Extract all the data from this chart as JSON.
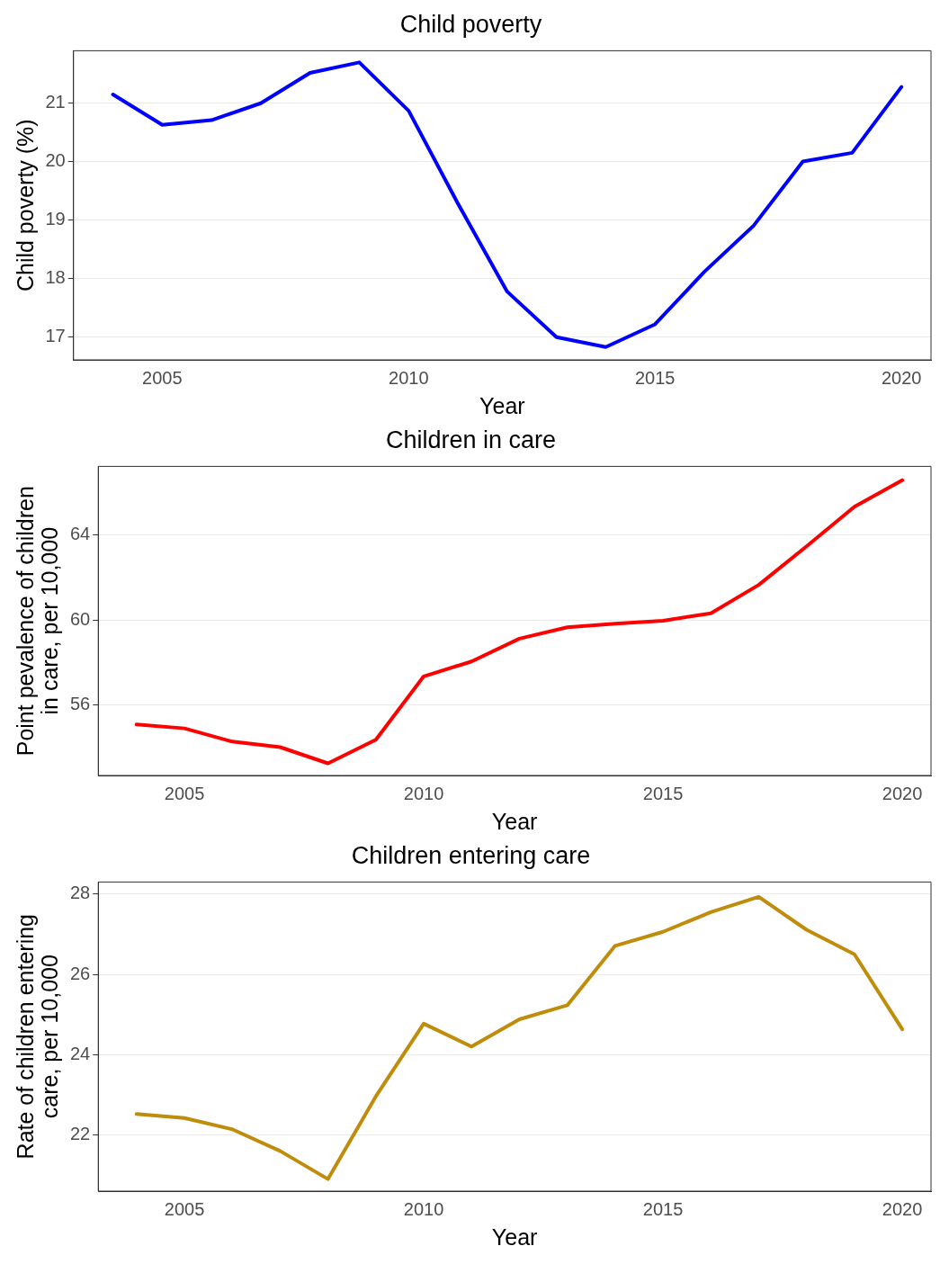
{
  "chart_data": [
    {
      "type": "line",
      "title": "Child poverty",
      "xlabel": "Year",
      "ylabel": "Child poverty (%)",
      "x": [
        2004,
        2005,
        2006,
        2007,
        2008,
        2009,
        2010,
        2011,
        2012,
        2013,
        2014,
        2015,
        2016,
        2017,
        2018,
        2019,
        2020
      ],
      "series": [
        {
          "color": "#0000ff",
          "values": [
            21.15,
            20.63,
            20.71,
            21.0,
            21.52,
            21.7,
            20.87,
            19.28,
            17.77,
            16.99,
            16.82,
            17.21,
            18.11,
            18.9,
            20.0,
            20.15,
            21.28
          ]
        }
      ],
      "xlim": [
        2003.2,
        2020.6
      ],
      "xticks": [
        2005,
        2010,
        2015,
        2020
      ],
      "ylim": [
        16.6,
        21.9
      ],
      "yticks": [
        17,
        18,
        19,
        20,
        21
      ],
      "grid": "y",
      "marker": "none",
      "line_style": "solid"
    },
    {
      "type": "line",
      "title": "Children in care",
      "xlabel": "Year",
      "ylabel": "Point pevalence of children\nin care, per 10,000",
      "x": [
        2004,
        2005,
        2006,
        2007,
        2008,
        2009,
        2010,
        2011,
        2012,
        2013,
        2014,
        2015,
        2016,
        2017,
        2018,
        2019,
        2020
      ],
      "series": [
        {
          "color": "#ff0000",
          "values": [
            55.09,
            54.91,
            54.29,
            54.03,
            53.27,
            54.38,
            57.35,
            58.05,
            59.12,
            59.65,
            59.82,
            59.96,
            60.31,
            61.64,
            63.45,
            65.31,
            66.55
          ]
        }
      ],
      "xlim": [
        2003.2,
        2020.6
      ],
      "xticks": [
        2005,
        2010,
        2015,
        2020
      ],
      "ylim": [
        52.7,
        67.2
      ],
      "yticks": [
        56,
        60,
        64
      ],
      "grid": "y",
      "marker": "none",
      "line_style": "solid"
    },
    {
      "type": "line",
      "title": "Children entering care",
      "xlabel": "Year",
      "ylabel": "Rate of children entering\ncare, per 10,000",
      "x": [
        2004,
        2005,
        2006,
        2007,
        2008,
        2009,
        2010,
        2011,
        2012,
        2013,
        2014,
        2015,
        2016,
        2017,
        2018,
        2019,
        2020
      ],
      "series": [
        {
          "color": "#bf8c0c",
          "values": [
            22.52,
            22.42,
            22.14,
            21.6,
            20.9,
            22.96,
            24.77,
            24.2,
            24.88,
            25.23,
            26.71,
            27.06,
            27.55,
            27.93,
            27.11,
            26.5,
            24.63
          ]
        }
      ],
      "xlim": [
        2003.2,
        2020.6
      ],
      "xticks": [
        2005,
        2010,
        2015,
        2020
      ],
      "ylim": [
        20.6,
        28.3
      ],
      "yticks": [
        22,
        24,
        26,
        28
      ],
      "grid": "y",
      "marker": "none",
      "line_style": "solid"
    }
  ]
}
